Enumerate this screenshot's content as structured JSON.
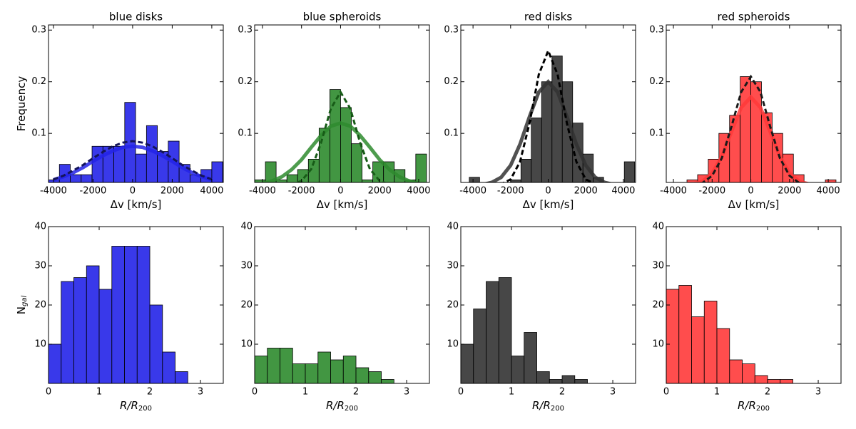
{
  "chart_data": [
    {
      "type": "histogram",
      "title": "blue disks",
      "xlabel": "Δv [km/s]",
      "ylabel": "Frequency",
      "color": "#2323e8",
      "bins": [
        -4250,
        -3700,
        -3150,
        -2600,
        -2050,
        -1500,
        -950,
        -400,
        150,
        700,
        1250,
        1800,
        2350,
        2900,
        3450,
        4000,
        4550
      ],
      "values": [
        0.01,
        0.04,
        0.02,
        0.02,
        0.075,
        0.075,
        0.075,
        0.16,
        0.06,
        0.115,
        0.065,
        0.085,
        0.04,
        0.02,
        0.03,
        0.045
      ],
      "xlim": [
        -4250,
        4580
      ],
      "xticks": [
        -4000,
        -2000,
        0,
        2000,
        4000
      ],
      "ylim": [
        0.005,
        0.31
      ],
      "yticks": [
        0.1,
        0.2,
        0.3
      ],
      "curves": [
        {
          "style": "solid",
          "color": "#2323e8",
          "x": [
            -4000,
            -3500,
            -3000,
            -2500,
            -2000,
            -1500,
            -1000,
            -500,
            0,
            500,
            1000,
            1500,
            2000,
            2500,
            3000,
            3500,
            4000
          ],
          "values": [
            0.01,
            0.016,
            0.024,
            0.034,
            0.046,
            0.057,
            0.066,
            0.073,
            0.075,
            0.073,
            0.066,
            0.057,
            0.046,
            0.034,
            0.024,
            0.016,
            0.01
          ]
        },
        {
          "style": "dashed",
          "color": "#14145a",
          "x": [
            -4000,
            -3500,
            -3000,
            -2500,
            -2000,
            -1500,
            -1000,
            -500,
            0,
            500,
            1000,
            1500,
            2000,
            2500,
            3000,
            3500,
            4000
          ],
          "values": [
            0.011,
            0.018,
            0.028,
            0.039,
            0.052,
            0.064,
            0.075,
            0.082,
            0.085,
            0.082,
            0.075,
            0.064,
            0.052,
            0.039,
            0.028,
            0.018,
            0.011
          ]
        }
      ]
    },
    {
      "type": "histogram",
      "title": "blue spheroids",
      "xlabel": "Δv [km/s]",
      "color": "#2e8b2e",
      "bins": [
        -4400,
        -3850,
        -3300,
        -2750,
        -2200,
        -1650,
        -1100,
        -550,
        0,
        550,
        1100,
        1650,
        2200,
        2750,
        3300,
        3850,
        4400
      ],
      "values": [
        0.01,
        0.045,
        0.01,
        0.02,
        0.03,
        0.05,
        0.11,
        0.185,
        0.15,
        0.08,
        0.01,
        0.045,
        0.045,
        0.03,
        0.01,
        0.06
      ],
      "xlim": [
        -4400,
        4550
      ],
      "xticks": [
        -4000,
        -2000,
        0,
        2000,
        4000
      ],
      "ylim": [
        0.005,
        0.31
      ],
      "yticks": [
        0.1,
        0.2,
        0.3
      ],
      "curves": [
        {
          "style": "solid",
          "color": "#2e8b2e",
          "x": [
            -4000,
            -3500,
            -3000,
            -2500,
            -2000,
            -1500,
            -1000,
            -500,
            0,
            500,
            1000,
            1500,
            2000,
            2500,
            3000,
            3500,
            4000
          ],
          "values": [
            0.003,
            0.008,
            0.016,
            0.03,
            0.049,
            0.073,
            0.096,
            0.114,
            0.12,
            0.114,
            0.096,
            0.073,
            0.049,
            0.03,
            0.016,
            0.008,
            0.003
          ]
        },
        {
          "style": "dashed",
          "color": "#175c17",
          "x": [
            -3000,
            -2500,
            -2000,
            -1500,
            -1000,
            -500,
            0,
            500,
            1000,
            1500,
            2000,
            2500,
            3000
          ],
          "values": [
            0,
            0.001,
            0.008,
            0.031,
            0.082,
            0.148,
            0.18,
            0.148,
            0.082,
            0.031,
            0.008,
            0.001,
            0
          ]
        }
      ]
    },
    {
      "type": "histogram",
      "title": "red disks",
      "xlabel": "Δv [km/s]",
      "color": "#333333",
      "bins": [
        -4200,
        -3650,
        -3100,
        -2550,
        -2000,
        -1450,
        -900,
        -350,
        200,
        750,
        1300,
        1850,
        2400,
        2950,
        3500,
        4050,
        4600
      ],
      "values": [
        0.015,
        0,
        0,
        0,
        0.01,
        0.05,
        0.13,
        0.2,
        0.25,
        0.2,
        0.12,
        0.06,
        0.015,
        0,
        0,
        0.045
      ],
      "xlim": [
        -4650,
        4650
      ],
      "xticks": [
        -4000,
        -2000,
        0,
        2000,
        4000
      ],
      "ylim": [
        0.005,
        0.31
      ],
      "yticks": [
        0.1,
        0.2,
        0.3
      ],
      "curves": [
        {
          "style": "solid",
          "color": "#333333",
          "x": [
            -4000,
            -3500,
            -3000,
            -2500,
            -2000,
            -1500,
            -1000,
            -500,
            0,
            500,
            1000,
            1500,
            2000,
            2500,
            3000,
            3500,
            4000
          ],
          "values": [
            0,
            0.001,
            0.005,
            0.015,
            0.038,
            0.079,
            0.132,
            0.18,
            0.2,
            0.18,
            0.132,
            0.079,
            0.038,
            0.015,
            0.005,
            0.001,
            0
          ]
        },
        {
          "style": "dashed",
          "color": "#000000",
          "x": [
            -3000,
            -2500,
            -2000,
            -1500,
            -1000,
            -500,
            0,
            500,
            1000,
            1500,
            2000,
            2500,
            3000
          ],
          "values": [
            0,
            0.002,
            0.011,
            0.045,
            0.119,
            0.214,
            0.26,
            0.214,
            0.119,
            0.045,
            0.011,
            0.002,
            0
          ]
        }
      ]
    },
    {
      "type": "histogram",
      "title": "red spheroids",
      "xlabel": "Δv [km/s]",
      "color": "#ff3a3a",
      "bins": [
        -3300,
        -2750,
        -2200,
        -1650,
        -1100,
        -550,
        0,
        550,
        1100,
        1650,
        2200,
        2750,
        3300,
        3850,
        4400
      ],
      "values": [
        0.01,
        0.02,
        0.05,
        0.1,
        0.135,
        0.21,
        0.2,
        0.14,
        0.1,
        0.06,
        0.02,
        0,
        0,
        0.01
      ],
      "xlim": [
        -4370,
        4660
      ],
      "xticks": [
        -4000,
        -2000,
        0,
        2000,
        4000
      ],
      "ylim": [
        0.005,
        0.31
      ],
      "yticks": [
        0.1,
        0.2,
        0.3
      ],
      "curves": [
        {
          "style": "solid",
          "color": "#ff3a3a",
          "x": [
            -3000,
            -2500,
            -2000,
            -1500,
            -1000,
            -500,
            0,
            500,
            1000,
            1500,
            2000,
            2500,
            3000
          ],
          "values": [
            0.002,
            0.007,
            0.023,
            0.055,
            0.103,
            0.15,
            0.17,
            0.15,
            0.103,
            0.055,
            0.023,
            0.007,
            0.002
          ]
        },
        {
          "style": "dashed",
          "color": "#1a1a1a",
          "x": [
            -3000,
            -2500,
            -2000,
            -1500,
            -1000,
            -500,
            0,
            500,
            1000,
            1500,
            2000,
            2500,
            3000
          ],
          "values": [
            0.001,
            0.004,
            0.018,
            0.052,
            0.113,
            0.18,
            0.21,
            0.18,
            0.113,
            0.052,
            0.018,
            0.004,
            0.001
          ]
        }
      ]
    },
    {
      "type": "histogram",
      "xlabel": "R/R",
      "xlabel_subscript": "200",
      "ylabel": "N",
      "ylabel_subscript": "gal",
      "color": "#2323e8",
      "bins": [
        0,
        0.25,
        0.5,
        0.75,
        1.0,
        1.25,
        1.5,
        1.75,
        2.0,
        2.25,
        2.5,
        2.75
      ],
      "values": [
        10,
        26,
        27,
        30,
        24,
        35,
        35,
        35,
        20,
        8,
        3
      ],
      "xlim": [
        0,
        3.45
      ],
      "xticks": [
        0,
        1,
        2,
        3
      ],
      "ylim": [
        0,
        40
      ],
      "yticks": [
        10,
        20,
        30,
        40
      ]
    },
    {
      "type": "histogram",
      "xlabel": "R/R",
      "xlabel_subscript": "200",
      "color": "#2e8b2e",
      "bins": [
        0,
        0.25,
        0.5,
        0.75,
        1.0,
        1.25,
        1.5,
        1.75,
        2.0,
        2.25,
        2.5,
        2.75
      ],
      "values": [
        7,
        9,
        9,
        5,
        5,
        8,
        6,
        7,
        4,
        3,
        1
      ],
      "xlim": [
        0,
        3.45
      ],
      "xticks": [
        0,
        1,
        2,
        3
      ],
      "ylim": [
        0,
        40
      ],
      "yticks": [
        10,
        20,
        30,
        40
      ]
    },
    {
      "type": "histogram",
      "xlabel": "R/R",
      "xlabel_subscript": "200",
      "color": "#333333",
      "bins": [
        0,
        0.25,
        0.5,
        0.75,
        1.0,
        1.25,
        1.5,
        1.75,
        2.0,
        2.25,
        2.5
      ],
      "values": [
        10,
        19,
        26,
        27,
        7,
        13,
        3,
        1,
        2,
        1
      ],
      "xlim": [
        0,
        3.45
      ],
      "xticks": [
        0,
        1,
        2,
        3
      ],
      "ylim": [
        0,
        40
      ],
      "yticks": [
        10,
        20,
        30,
        40
      ]
    },
    {
      "type": "histogram",
      "xlabel": "R/R",
      "xlabel_subscript": "200",
      "color": "#ff3a3a",
      "bins": [
        0,
        0.25,
        0.5,
        0.75,
        1.0,
        1.25,
        1.5,
        1.75,
        2.0,
        2.25,
        2.5
      ],
      "values": [
        24,
        25,
        17,
        21,
        14,
        6,
        5,
        2,
        1,
        1
      ],
      "xlim": [
        0,
        3.45
      ],
      "xticks": [
        0,
        1,
        2,
        3
      ],
      "ylim": [
        0,
        40
      ],
      "yticks": [
        10,
        20,
        30,
        40
      ]
    }
  ]
}
